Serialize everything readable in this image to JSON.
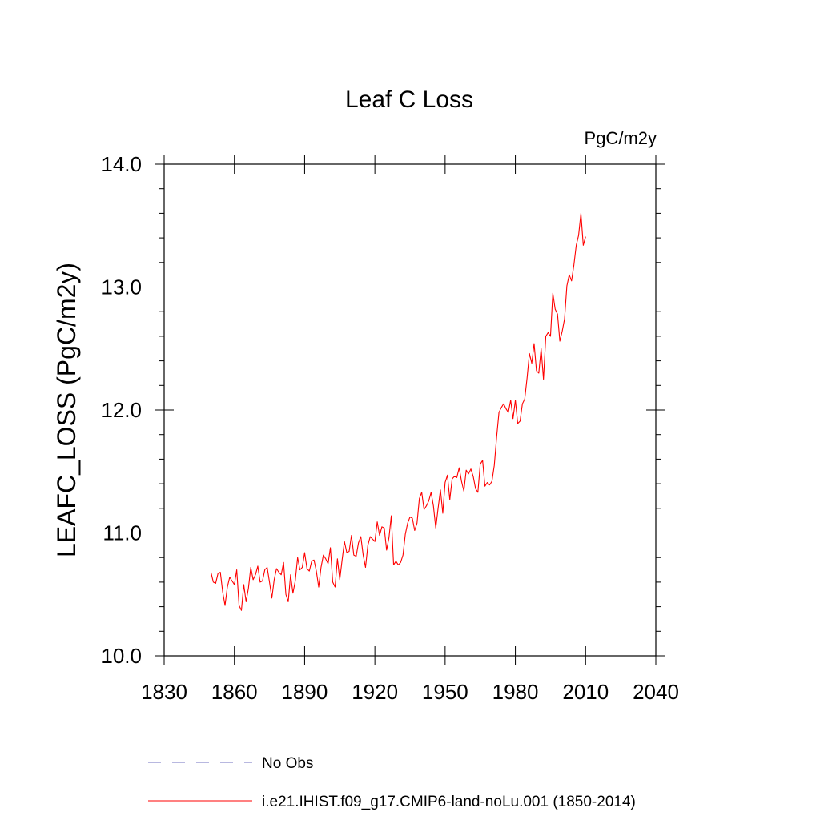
{
  "chart_data": {
    "type": "line",
    "title": "Leaf C Loss",
    "units": "PgC/m2y",
    "ylabel": "LEAFC_LOSS  (PgC/m2y)",
    "xlabel": "",
    "xlim": [
      1830,
      2040
    ],
    "ylim": [
      10.0,
      14.0
    ],
    "x_ticks": [
      1830,
      1860,
      1890,
      1920,
      1950,
      1980,
      2010,
      2040
    ],
    "x_tick_labels": [
      "1830",
      "1860",
      "1890",
      "1920",
      "1950",
      "1980",
      "2010",
      "2040"
    ],
    "y_ticks": [
      10,
      11,
      12,
      13,
      14
    ],
    "y_tick_labels": [
      "10.0",
      "11.0",
      "12.0",
      "13.0",
      "14.0"
    ],
    "grid": false,
    "legend_position": "bottom",
    "legend": [
      {
        "label": "No Obs",
        "color": "#7070c0",
        "style": "dashed"
      },
      {
        "label": "i.e21.IHIST.f09_g17.CMIP6-land-noLu.001 (1850-2014)",
        "color": "#ff0000",
        "style": "solid"
      }
    ],
    "series": [
      {
        "name": "i.e21.IHIST.f09_g17.CMIP6-land-noLu.001 (1850-2014)",
        "color": "#ff0000",
        "x_start": 1850,
        "x_step": 1,
        "values": [
          10.68,
          10.6,
          10.59,
          10.67,
          10.68,
          10.52,
          10.41,
          10.56,
          10.64,
          10.61,
          10.58,
          10.7,
          10.41,
          10.37,
          10.58,
          10.44,
          10.55,
          10.72,
          10.62,
          10.66,
          10.73,
          10.6,
          10.61,
          10.7,
          10.72,
          10.6,
          10.47,
          10.62,
          10.71,
          10.68,
          10.66,
          10.76,
          10.5,
          10.44,
          10.66,
          10.51,
          10.61,
          10.8,
          10.7,
          10.72,
          10.84,
          10.71,
          10.69,
          10.77,
          10.78,
          10.69,
          10.56,
          10.72,
          10.82,
          10.79,
          10.75,
          10.88,
          10.6,
          10.56,
          10.79,
          10.62,
          10.78,
          10.93,
          10.84,
          10.85,
          10.98,
          10.82,
          10.81,
          10.92,
          10.97,
          10.82,
          10.72,
          10.9,
          10.97,
          10.95,
          10.93,
          11.09,
          10.98,
          11.05,
          11.04,
          10.86,
          10.96,
          11.14,
          10.74,
          10.77,
          10.74,
          10.76,
          10.82,
          10.99,
          11.08,
          11.13,
          11.12,
          11.02,
          11.08,
          11.28,
          11.33,
          11.19,
          11.22,
          11.26,
          11.33,
          11.22,
          11.04,
          11.2,
          11.35,
          11.16,
          11.41,
          11.47,
          11.27,
          11.44,
          11.46,
          11.45,
          11.53,
          11.42,
          11.34,
          11.51,
          11.48,
          11.52,
          11.46,
          11.36,
          11.33,
          11.56,
          11.59,
          11.38,
          11.41,
          11.39,
          11.42,
          11.55,
          11.78,
          11.98,
          12.02,
          12.05,
          12.01,
          11.98,
          12.08,
          11.93,
          12.08,
          11.89,
          11.91,
          12.05,
          12.09,
          12.26,
          12.46,
          12.38,
          12.54,
          12.32,
          12.3,
          12.5,
          12.25,
          12.6,
          12.63,
          12.6,
          12.95,
          12.82,
          12.78,
          12.56,
          12.64,
          12.74,
          13.01,
          13.1,
          13.05,
          13.18,
          13.34,
          13.42,
          13.6,
          13.34,
          13.41
        ]
      }
    ]
  }
}
